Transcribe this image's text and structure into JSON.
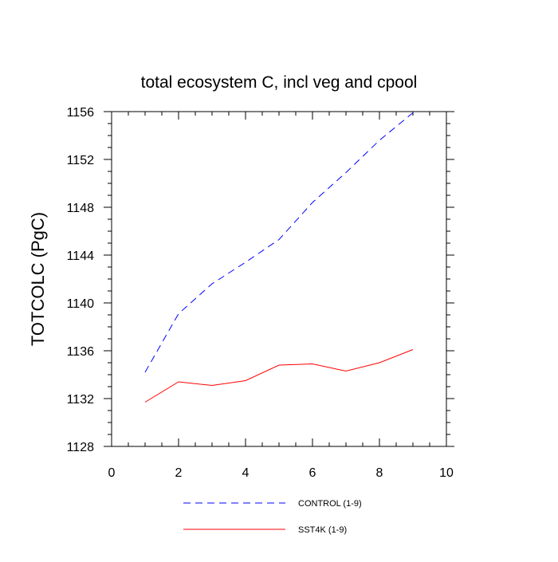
{
  "chart_data": {
    "type": "line",
    "title": "total ecosystem C, incl veg and cpool",
    "xlabel": "",
    "ylabel": "TOTCOLC  (PgC)",
    "xlim": [
      0,
      10
    ],
    "ylim": [
      1128,
      1156
    ],
    "xticks": [
      0,
      2,
      4,
      6,
      8,
      10
    ],
    "yticks": [
      1128,
      1132,
      1136,
      1140,
      1144,
      1148,
      1152,
      1156
    ],
    "x": [
      1,
      2,
      3,
      4,
      5,
      6,
      7,
      8,
      9
    ],
    "series": [
      {
        "name": "CONTROL (1-9)",
        "color": "#0000ff",
        "dash": "dashed",
        "values": [
          1134.2,
          1139.1,
          1141.6,
          1143.4,
          1145.3,
          1148.4,
          1150.9,
          1153.6,
          1155.9
        ]
      },
      {
        "name": "SST4K (1-9)",
        "color": "#ff0000",
        "dash": "solid",
        "values": [
          1131.7,
          1133.4,
          1133.1,
          1133.5,
          1134.8,
          1134.9,
          1134.3,
          1135.0,
          1136.1
        ]
      }
    ],
    "legend_position": "bottom"
  }
}
